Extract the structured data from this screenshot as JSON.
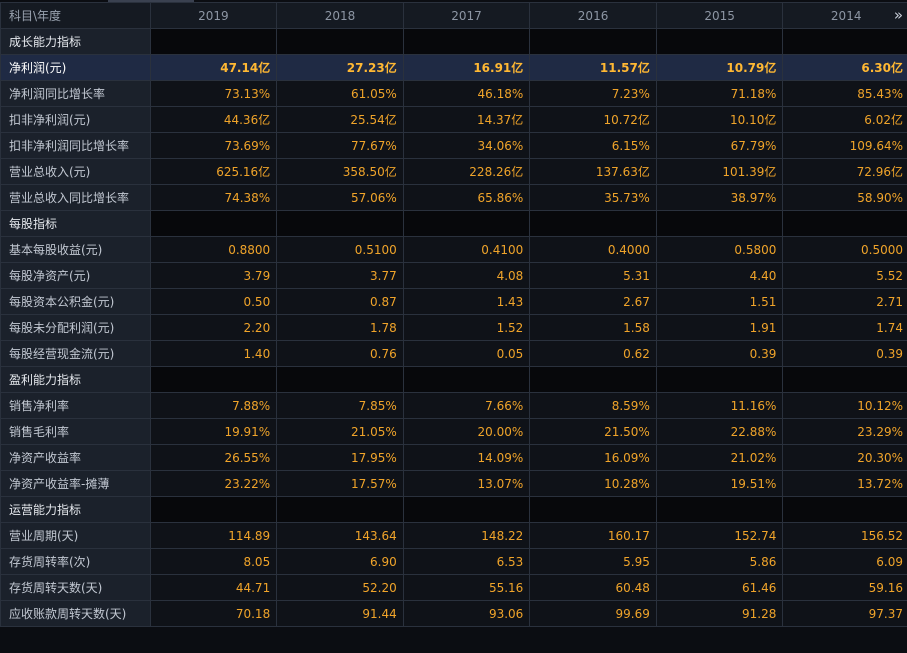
{
  "header": {
    "corner_label": "科目\\年度",
    "years": [
      "2019",
      "2018",
      "2017",
      "2016",
      "2015",
      "2014"
    ]
  },
  "rows": [
    {
      "type": "section",
      "label": "成长能力指标"
    },
    {
      "type": "highlight",
      "label": "净利润(元)",
      "values": [
        "47.14亿",
        "27.23亿",
        "16.91亿",
        "11.57亿",
        "10.79亿",
        "6.30亿"
      ]
    },
    {
      "type": "data",
      "label": "净利润同比增长率",
      "values": [
        "73.13%",
        "61.05%",
        "46.18%",
        "7.23%",
        "71.18%",
        "85.43%"
      ]
    },
    {
      "type": "data",
      "label": "扣非净利润(元)",
      "values": [
        "44.36亿",
        "25.54亿",
        "14.37亿",
        "10.72亿",
        "10.10亿",
        "6.02亿"
      ]
    },
    {
      "type": "data",
      "label": "扣非净利润同比增长率",
      "values": [
        "73.69%",
        "77.67%",
        "34.06%",
        "6.15%",
        "67.79%",
        "109.64%"
      ]
    },
    {
      "type": "data",
      "label": "营业总收入(元)",
      "values": [
        "625.16亿",
        "358.50亿",
        "228.26亿",
        "137.63亿",
        "101.39亿",
        "72.96亿"
      ]
    },
    {
      "type": "data",
      "label": "营业总收入同比增长率",
      "values": [
        "74.38%",
        "57.06%",
        "65.86%",
        "35.73%",
        "38.97%",
        "58.90%"
      ]
    },
    {
      "type": "section",
      "label": "每股指标"
    },
    {
      "type": "data",
      "label": "基本每股收益(元)",
      "values": [
        "0.8800",
        "0.5100",
        "0.4100",
        "0.4000",
        "0.5800",
        "0.5000"
      ]
    },
    {
      "type": "data",
      "label": "每股净资产(元)",
      "values": [
        "3.79",
        "3.77",
        "4.08",
        "5.31",
        "4.40",
        "5.52"
      ]
    },
    {
      "type": "data",
      "label": "每股资本公积金(元)",
      "values": [
        "0.50",
        "0.87",
        "1.43",
        "2.67",
        "1.51",
        "2.71"
      ]
    },
    {
      "type": "data",
      "label": "每股未分配利润(元)",
      "values": [
        "2.20",
        "1.78",
        "1.52",
        "1.58",
        "1.91",
        "1.74"
      ]
    },
    {
      "type": "data",
      "label": "每股经营现金流(元)",
      "values": [
        "1.40",
        "0.76",
        "0.05",
        "0.62",
        "0.39",
        "0.39"
      ]
    },
    {
      "type": "section",
      "label": "盈利能力指标"
    },
    {
      "type": "data",
      "label": "销售净利率",
      "values": [
        "7.88%",
        "7.85%",
        "7.66%",
        "8.59%",
        "11.16%",
        "10.12%"
      ]
    },
    {
      "type": "data",
      "label": "销售毛利率",
      "values": [
        "19.91%",
        "21.05%",
        "20.00%",
        "21.50%",
        "22.88%",
        "23.29%"
      ]
    },
    {
      "type": "data",
      "label": "净资产收益率",
      "values": [
        "26.55%",
        "17.95%",
        "14.09%",
        "16.09%",
        "21.02%",
        "20.30%"
      ]
    },
    {
      "type": "data",
      "label": "净资产收益率-摊薄",
      "values": [
        "23.22%",
        "17.57%",
        "13.07%",
        "10.28%",
        "19.51%",
        "13.72%"
      ]
    },
    {
      "type": "section",
      "label": "运营能力指标"
    },
    {
      "type": "data",
      "label": "营业周期(天)",
      "values": [
        "114.89",
        "143.64",
        "148.22",
        "160.17",
        "152.74",
        "156.52"
      ]
    },
    {
      "type": "data",
      "label": "存货周转率(次)",
      "values": [
        "8.05",
        "6.90",
        "6.53",
        "5.95",
        "5.86",
        "6.09"
      ]
    },
    {
      "type": "data",
      "label": "存货周转天数(天)",
      "values": [
        "44.71",
        "52.20",
        "55.16",
        "60.48",
        "61.46",
        "59.16"
      ]
    },
    {
      "type": "data",
      "label": "应收账款周转天数(天)",
      "values": [
        "70.18",
        "91.44",
        "93.06",
        "99.69",
        "91.28",
        "97.37"
      ]
    }
  ],
  "icons": {
    "scroll_right": "double-chevron-right-icon"
  },
  "colors": {
    "value_text": "#f0a42a",
    "highlight_row": "#1f2a44",
    "label_bg": "#1b212b",
    "background": "#0b0d12"
  }
}
